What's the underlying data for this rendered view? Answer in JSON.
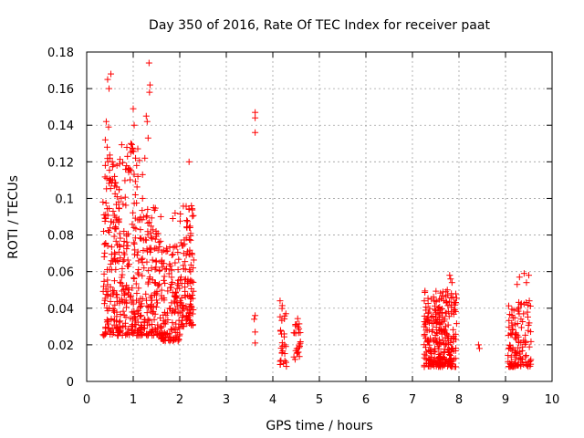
{
  "chart_data": {
    "type": "scatter",
    "title": "Day 350 of 2016, Rate Of TEC Index for receiver paat",
    "xlabel": "GPS time / hours",
    "ylabel": "ROTI / TECUs",
    "xlim": [
      0,
      10
    ],
    "ylim": [
      0,
      0.18
    ],
    "xticks": [
      "0",
      "1",
      "2",
      "3",
      "4",
      "5",
      "6",
      "7",
      "8",
      "9",
      "10"
    ],
    "yticks": [
      "0",
      "0.02",
      "0.04",
      "0.06",
      "0.08",
      "0.1",
      "0.12",
      "0.14",
      "0.16",
      "0.18"
    ],
    "grid": true,
    "marker": "+",
    "color": "#ff0000",
    "clusters": [
      {
        "x_range": [
          0.35,
          0.75
        ],
        "y_range": [
          0.025,
          0.125
        ],
        "count": 170
      },
      {
        "x_range": [
          0.75,
          1.15
        ],
        "y_range": [
          0.025,
          0.13
        ],
        "count": 150
      },
      {
        "x_range": [
          1.15,
          1.6
        ],
        "y_range": [
          0.025,
          0.095
        ],
        "count": 150
      },
      {
        "x_range": [
          1.6,
          2.0
        ],
        "y_range": [
          0.022,
          0.075
        ],
        "count": 130
      },
      {
        "x_range": [
          2.0,
          2.3
        ],
        "y_range": [
          0.03,
          0.097
        ],
        "count": 110
      },
      {
        "x_range": [
          4.15,
          4.3
        ],
        "y_range": [
          0.008,
          0.046
        ],
        "count": 30
      },
      {
        "x_range": [
          4.45,
          4.6
        ],
        "y_range": [
          0.012,
          0.035
        ],
        "count": 25
      },
      {
        "x_range": [
          7.25,
          7.95
        ],
        "y_range": [
          0.008,
          0.05
        ],
        "count": 280
      },
      {
        "x_range": [
          9.05,
          9.55
        ],
        "y_range": [
          0.008,
          0.045
        ],
        "count": 120
      }
    ],
    "points": [
      [
        0.45,
        0.165
      ],
      [
        0.52,
        0.168
      ],
      [
        0.48,
        0.16
      ],
      [
        0.42,
        0.142
      ],
      [
        0.47,
        0.139
      ],
      [
        0.4,
        0.132
      ],
      [
        0.44,
        0.128
      ],
      [
        0.5,
        0.122
      ],
      [
        0.4,
        0.118
      ],
      [
        0.55,
        0.12
      ],
      [
        0.6,
        0.112
      ],
      [
        0.65,
        0.118
      ],
      [
        0.35,
        0.098
      ],
      [
        0.95,
        0.13
      ],
      [
        1.0,
        0.149
      ],
      [
        1.02,
        0.14
      ],
      [
        0.98,
        0.126
      ],
      [
        1.05,
        0.122
      ],
      [
        1.1,
        0.112
      ],
      [
        1.2,
        0.113
      ],
      [
        1.28,
        0.145
      ],
      [
        1.3,
        0.142
      ],
      [
        1.32,
        0.133
      ],
      [
        1.35,
        0.158
      ],
      [
        1.36,
        0.162
      ],
      [
        1.34,
        0.174
      ],
      [
        1.25,
        0.122
      ],
      [
        1.2,
        0.1
      ],
      [
        1.9,
        0.092
      ],
      [
        1.85,
        0.089
      ],
      [
        2.2,
        0.12
      ],
      [
        2.25,
        0.096
      ],
      [
        2.2,
        0.094
      ],
      [
        2.15,
        0.088
      ],
      [
        3.62,
        0.147
      ],
      [
        3.62,
        0.144
      ],
      [
        3.62,
        0.136
      ],
      [
        3.62,
        0.036
      ],
      [
        3.6,
        0.034
      ],
      [
        3.62,
        0.027
      ],
      [
        3.62,
        0.021
      ],
      [
        7.8,
        0.058
      ],
      [
        7.82,
        0.056
      ],
      [
        7.85,
        0.054
      ],
      [
        7.75,
        0.05
      ],
      [
        8.42,
        0.02
      ],
      [
        8.44,
        0.018
      ],
      [
        9.4,
        0.059
      ],
      [
        9.5,
        0.058
      ],
      [
        9.45,
        0.054
      ],
      [
        9.3,
        0.057
      ],
      [
        9.25,
        0.053
      ]
    ]
  }
}
